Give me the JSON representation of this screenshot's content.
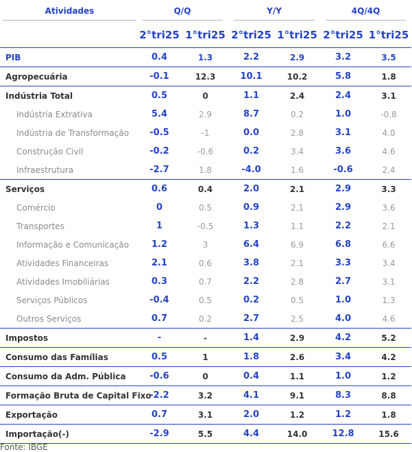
{
  "header": {
    "col0": "Atividades",
    "groups": [
      "Q/Q",
      "Y/Y",
      "4Q/4Q"
    ],
    "periods": [
      "2°tri25",
      "1°tri25",
      "2°tri25",
      "1°tri25",
      "2°tri25",
      "1°tri25"
    ]
  },
  "rows": [
    {
      "label": "PIB",
      "values": [
        "0.4",
        "1.3",
        "2.2",
        "2.9",
        "3.2",
        "3.5"
      ]
    },
    {
      "label": "Agropecuária",
      "values": [
        "-0.1",
        "12.3",
        "10.1",
        "10.2",
        "5.8",
        "1.8"
      ]
    },
    {
      "label": "Indústria Total",
      "values": [
        "0.5",
        "0",
        "1.1",
        "2.4",
        "2.4",
        "3.1"
      ]
    },
    {
      "label": "Indústria Extrativa",
      "values": [
        "5.4",
        "2.9",
        "8.7",
        "0.2",
        "1.0",
        "-0.8"
      ]
    },
    {
      "label": "Indústria de Transformação",
      "values": [
        "-0.5",
        "-1",
        "0.0",
        "2.8",
        "3.1",
        "4.0"
      ]
    },
    {
      "label": "Construção Civil",
      "values": [
        "-0.2",
        "-0.6",
        "0.2",
        "3.4",
        "3.6",
        "4.6"
      ]
    },
    {
      "label": "Infraestrutura",
      "values": [
        "-2.7",
        "1.8",
        "-4.0",
        "1.6",
        "-0.6",
        "2.4"
      ]
    },
    {
      "label": "Serviços",
      "values": [
        "0.6",
        "0.4",
        "2.0",
        "2.1",
        "2.9",
        "3.3"
      ]
    },
    {
      "label": "Comércio",
      "values": [
        "0",
        "0.5",
        "0.9",
        "2.1",
        "2.9",
        "3.6"
      ]
    },
    {
      "label": "Transportes",
      "values": [
        "1",
        "-0.5",
        "1.3",
        "1.1",
        "2.2",
        "2.1"
      ]
    },
    {
      "label": "Informação e Comunicação",
      "values": [
        "1.2",
        "3",
        "6.4",
        "6.9",
        "6.8",
        "6.6"
      ]
    },
    {
      "label": "Atividades Financeiras",
      "values": [
        "2.1",
        "0.6",
        "3.8",
        "2.1",
        "3.3",
        "3.4"
      ]
    },
    {
      "label": "Atividades Imobiliárias",
      "values": [
        "0.3",
        "0.7",
        "2.2",
        "2.8",
        "2.7",
        "3.1"
      ]
    },
    {
      "label": "Serviços Públicos",
      "values": [
        "-0.4",
        "0.5",
        "0.2",
        "0.5",
        "1.0",
        "1.3"
      ]
    },
    {
      "label": "Outros Serviços",
      "values": [
        "0.7",
        "0.2",
        "2.7",
        "2.5",
        "4.0",
        "4.6"
      ]
    },
    {
      "label": "Impostos",
      "values": [
        "-",
        "-",
        "1.4",
        "2.9",
        "4.2",
        "5.2"
      ]
    },
    {
      "label": "Consumo das Famílias",
      "values": [
        "0.5",
        "1",
        "1.8",
        "2.6",
        "3.4",
        "4.2"
      ]
    },
    {
      "label": "Consumo da Adm. Pública",
      "values": [
        "-0.6",
        "0",
        "0.4",
        "1.1",
        "1.0",
        "1.2"
      ]
    },
    {
      "label": "Formação Bruta de Capital Fixo",
      "values": [
        "-2.2",
        "3.2",
        "4.1",
        "9.1",
        "8.3",
        "8.8"
      ]
    },
    {
      "label": "Exportação",
      "values": [
        "0.7",
        "3.1",
        "2.0",
        "1.2",
        "1.2",
        "1.8"
      ]
    },
    {
      "label": "Importação(-)",
      "values": [
        "-2.9",
        "5.5",
        "4.4",
        "14.0",
        "12.8",
        "15.6"
      ]
    }
  ],
  "source": "Fonte: IBGE",
  "colors": {
    "accent": "#2443c4",
    "text": "#333333",
    "muted": "#9a9a9a"
  }
}
